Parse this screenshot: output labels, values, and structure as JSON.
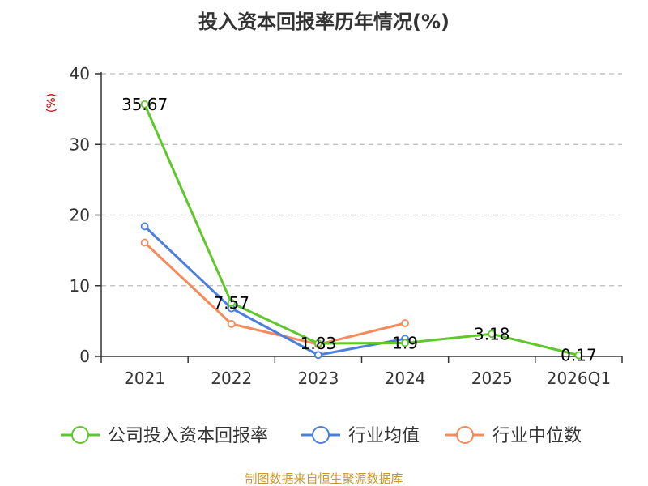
{
  "colors": {
    "company": "#5ec72a",
    "industry_avg": "#4a7fe0",
    "industry_median": "#f58a5a",
    "grid": "#bbbbbb",
    "axis": "#333333"
  },
  "chart_data": {
    "type": "line",
    "title": "投入资本回报率历年情况(%)",
    "ylabel": "(%)",
    "xlabel": "",
    "categories": [
      "2021",
      "2022",
      "2023",
      "2024",
      "2025",
      "2026Q1"
    ],
    "ylim": [
      0,
      40
    ],
    "yticks": [
      "0",
      "10",
      "20",
      "30",
      "40"
    ],
    "grid": "horizontal dashed",
    "legend_position": "bottom",
    "series": [
      {
        "name": "公司投入资本回报率",
        "color_key": "company",
        "values": [
          35.67,
          7.57,
          1.83,
          1.9,
          3.18,
          0.17
        ],
        "labels": [
          "35.67",
          "7.57",
          "1.83",
          "1.9",
          "3.18",
          "0.17"
        ]
      },
      {
        "name": "行业均值",
        "color_key": "industry_avg",
        "values": [
          18.4,
          6.8,
          0.2,
          2.5,
          null,
          null
        ]
      },
      {
        "name": "行业中位数",
        "color_key": "industry_median",
        "values": [
          16.1,
          4.6,
          1.7,
          4.7,
          null,
          null
        ]
      }
    ]
  },
  "footer": {
    "source": "制图数据来自恒生聚源数据库"
  }
}
